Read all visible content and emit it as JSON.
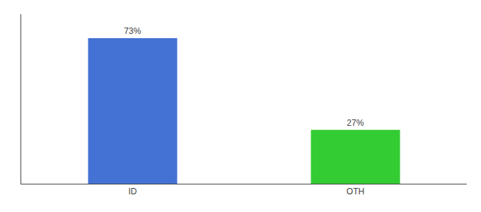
{
  "chart_data": {
    "type": "bar",
    "categories": [
      "ID",
      "OTH"
    ],
    "values": [
      73,
      27
    ],
    "value_labels": [
      "73%",
      "27%"
    ],
    "colors": [
      "#4472d4",
      "#33cc33"
    ],
    "ylim": [
      0,
      85
    ],
    "yticks": [],
    "data_labels": true,
    "tick_labels": "x",
    "grid": false
  }
}
